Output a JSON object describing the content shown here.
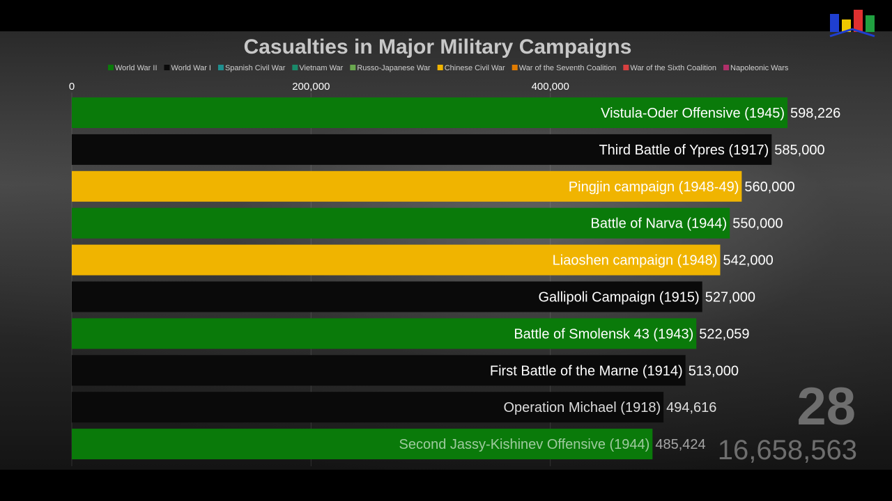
{
  "chart_data": {
    "type": "bar",
    "orientation": "horizontal",
    "title": "Casualties in Major Military Campaigns",
    "xlim": [
      0,
      598226
    ],
    "x_ticks": [
      {
        "value": 0,
        "label": "0"
      },
      {
        "value": 200000,
        "label": "200,000"
      },
      {
        "value": 400000,
        "label": "400,000"
      }
    ],
    "legend": [
      {
        "name": "World War II",
        "color": "#0a7a0a"
      },
      {
        "name": "World War I",
        "color": "#0a0a0a"
      },
      {
        "name": "Spanish Civil War",
        "color": "#1f8f8f"
      },
      {
        "name": "Vietnam War",
        "color": "#1a8a6a"
      },
      {
        "name": "Russo-Japanese War",
        "color": "#6aa84f"
      },
      {
        "name": "Chinese Civil War",
        "color": "#f0b400"
      },
      {
        "name": "War of the Seventh Coalition",
        "color": "#e07b00"
      },
      {
        "name": "War of the Sixth Coalition",
        "color": "#d94040"
      },
      {
        "name": "Napoleonic Wars",
        "color": "#b0306a"
      }
    ],
    "bars": [
      {
        "label": "Vistula-Oder Offensive (1945)",
        "value": 598226,
        "value_label": "598,226",
        "group": "World War II"
      },
      {
        "label": "Third Battle of Ypres (1917)",
        "value": 585000,
        "value_label": "585,000",
        "group": "World War I"
      },
      {
        "label": "Pingjin campaign (1948-49)",
        "value": 560000,
        "value_label": "560,000",
        "group": "Chinese Civil War"
      },
      {
        "label": "Battle of Narva (1944)",
        "value": 550000,
        "value_label": "550,000",
        "group": "World War II"
      },
      {
        "label": "Liaoshen campaign (1948)",
        "value": 542000,
        "value_label": "542,000",
        "group": "Chinese Civil War"
      },
      {
        "label": "Gallipoli Campaign (1915)",
        "value": 527000,
        "value_label": "527,000",
        "group": "World War I"
      },
      {
        "label": "Battle of Smolensk 43 (1943)",
        "value": 522059,
        "value_label": "522,059",
        "group": "World War II"
      },
      {
        "label": "First Battle of the Marne (1914)",
        "value": 513000,
        "value_label": "513,000",
        "group": "World War I"
      },
      {
        "label": "Operation Michael (1918)",
        "value": 494616,
        "value_label": "494,616",
        "group": "World War I"
      },
      {
        "label": "Second Jassy-Kishinev Offensive (1944)",
        "value": 485424,
        "value_label": "485,424",
        "group": "World War II"
      }
    ],
    "rank_counter": "28",
    "total": "16,658,563"
  },
  "logo": {
    "colors": [
      "#1f3fd0",
      "#f0c800",
      "#e03030",
      "#20a040"
    ]
  }
}
